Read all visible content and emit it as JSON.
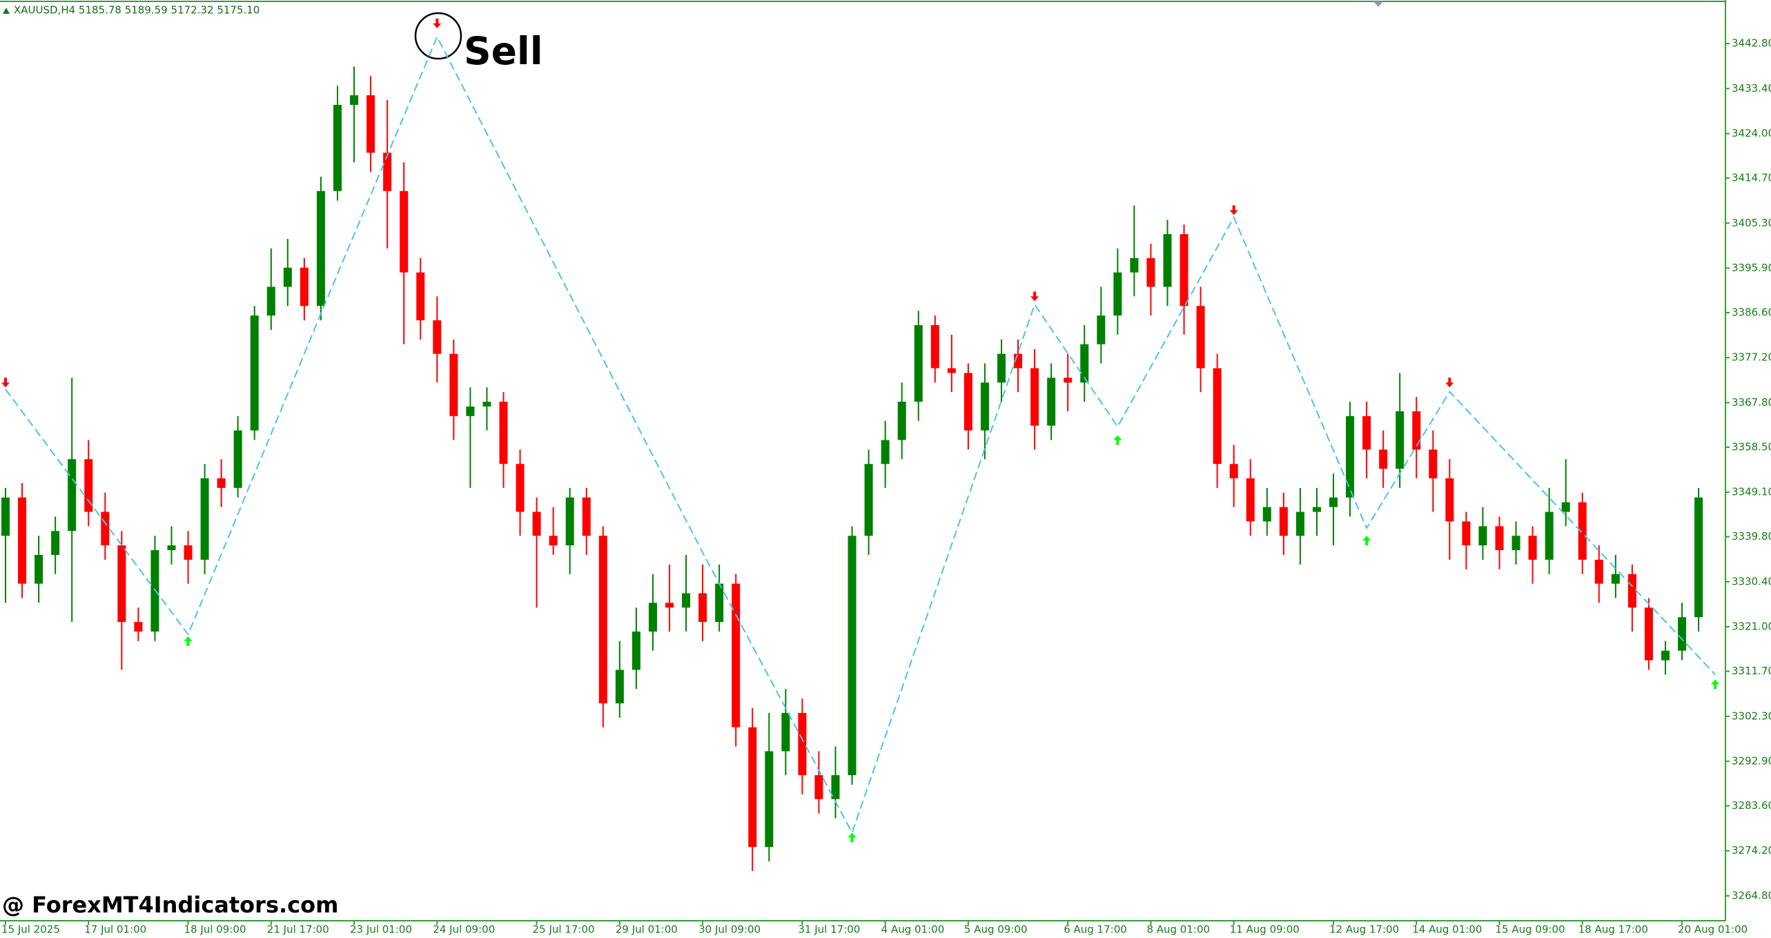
{
  "chart_data": {
    "type": "candlestick",
    "title": "XAUUSD,H4  5185.78 5189.59 5172.32 5175.10",
    "annotation": "Sell",
    "watermark": "@ ForexMT4Indicators.com",
    "up_color": "#008000",
    "down_color": "#ff0000",
    "categories": [
      "15 Jul 2025",
      null,
      null,
      null,
      null,
      "17 Jul 01:00",
      null,
      null,
      null,
      null,
      null,
      "18 Jul 09:00",
      null,
      null,
      null,
      null,
      "21 Jul 17:00",
      null,
      null,
      null,
      null,
      "23 Jul 01:00",
      null,
      null,
      null,
      null,
      "24 Jul 09:00",
      null,
      null,
      null,
      null,
      null,
      "25 Jul 17:00",
      null,
      null,
      null,
      null,
      "29 Jul 01:00",
      null,
      null,
      null,
      null,
      "30 Jul 09:00",
      null,
      null,
      null,
      null,
      null,
      "31 Jul 17:00",
      null,
      null,
      null,
      null,
      "4 Aug 01:00",
      null,
      null,
      null,
      null,
      "5 Aug 09:00",
      null,
      null,
      null,
      null,
      null,
      "6 Aug 17:00",
      null,
      null,
      null,
      null,
      "8 Aug 01:00",
      null,
      null,
      null,
      null,
      "11 Aug 09:00",
      null,
      null,
      null,
      null,
      null,
      "12 Aug 17:00",
      null,
      null,
      null,
      null,
      "14 Aug 01:00",
      null,
      null,
      null,
      null,
      "15 Aug 09:00",
      null,
      null,
      null,
      null,
      "18 Aug 17:00",
      null,
      null,
      null,
      null,
      null,
      "20 Aug 01:00",
      null
    ],
    "ohlc": [
      [
        3340,
        3350,
        3326,
        3348
      ],
      [
        3348,
        3351,
        3327,
        3330
      ],
      [
        3330,
        3340,
        3326,
        3336
      ],
      [
        3336,
        3344,
        3332,
        3341
      ],
      [
        3341,
        3373,
        3322,
        3356
      ],
      [
        3356,
        3360,
        3342,
        3345
      ],
      [
        3345,
        3349,
        3335,
        3338
      ],
      [
        3338,
        3341,
        3312,
        3322
      ],
      [
        3322,
        3325,
        3318,
        3320
      ],
      [
        3320,
        3340,
        3318,
        3337
      ],
      [
        3337,
        3342,
        3334,
        3338
      ],
      [
        3338,
        3341,
        3330,
        3335
      ],
      [
        3335,
        3355,
        3332,
        3352
      ],
      [
        3352,
        3356,
        3346,
        3350
      ],
      [
        3350,
        3365,
        3348,
        3362
      ],
      [
        3362,
        3388,
        3360,
        3386
      ],
      [
        3386,
        3400,
        3383,
        3392
      ],
      [
        3392,
        3402,
        3388,
        3396
      ],
      [
        3396,
        3398,
        3385,
        3388
      ],
      [
        3388,
        3415,
        3385,
        3412
      ],
      [
        3412,
        3434,
        3410,
        3430
      ],
      [
        3430,
        3438,
        3418,
        3432
      ],
      [
        3432,
        3436,
        3416,
        3420
      ],
      [
        3420,
        3431,
        3400,
        3412
      ],
      [
        3412,
        3418,
        3380,
        3395
      ],
      [
        3395,
        3398,
        3381,
        3385
      ],
      [
        3385,
        3390,
        3372,
        3378
      ],
      [
        3378,
        3381,
        3360,
        3365
      ],
      [
        3365,
        3371,
        3350,
        3367
      ],
      [
        3367,
        3371,
        3362,
        3368
      ],
      [
        3368,
        3370,
        3350,
        3355
      ],
      [
        3355,
        3358,
        3340,
        3345
      ],
      [
        3345,
        3348,
        3325,
        3340
      ],
      [
        3340,
        3346,
        3336,
        3338
      ],
      [
        3338,
        3350,
        3332,
        3348
      ],
      [
        3348,
        3350,
        3336,
        3340
      ],
      [
        3340,
        3342,
        3300,
        3305
      ],
      [
        3305,
        3318,
        3302,
        3312
      ],
      [
        3312,
        3325,
        3308,
        3320
      ],
      [
        3320,
        3332,
        3316,
        3326
      ],
      [
        3326,
        3334,
        3320,
        3325
      ],
      [
        3325,
        3336,
        3320,
        3328
      ],
      [
        3328,
        3334,
        3318,
        3322
      ],
      [
        3322,
        3334,
        3320,
        3330
      ],
      [
        3330,
        3332,
        3296,
        3300
      ],
      [
        3300,
        3304,
        3270,
        3275
      ],
      [
        3275,
        3303,
        3272,
        3295
      ],
      [
        3295,
        3308,
        3290,
        3303
      ],
      [
        3303,
        3306,
        3286,
        3290
      ],
      [
        3290,
        3295,
        3282,
        3285
      ],
      [
        3285,
        3296,
        3281,
        3290
      ],
      [
        3290,
        3342,
        3288,
        3340
      ],
      [
        3340,
        3358,
        3336,
        3355
      ],
      [
        3355,
        3364,
        3350,
        3360
      ],
      [
        3360,
        3372,
        3356,
        3368
      ],
      [
        3368,
        3387,
        3364,
        3384
      ],
      [
        3384,
        3386,
        3372,
        3375
      ],
      [
        3375,
        3382,
        3370,
        3374
      ],
      [
        3374,
        3376,
        3358,
        3362
      ],
      [
        3362,
        3376,
        3356,
        3372
      ],
      [
        3372,
        3381,
        3368,
        3378
      ],
      [
        3378,
        3381,
        3370,
        3375
      ],
      [
        3375,
        3379,
        3358,
        3363
      ],
      [
        3363,
        3376,
        3360,
        3373
      ],
      [
        3373,
        3378,
        3366,
        3372
      ],
      [
        3372,
        3384,
        3368,
        3380
      ],
      [
        3380,
        3392,
        3376,
        3386
      ],
      [
        3386,
        3400,
        3382,
        3395
      ],
      [
        3395,
        3409,
        3390,
        3398
      ],
      [
        3398,
        3401,
        3386,
        3392
      ],
      [
        3392,
        3406,
        3388,
        3403
      ],
      [
        3403,
        3405,
        3382,
        3388
      ],
      [
        3388,
        3392,
        3370,
        3375
      ],
      [
        3375,
        3378,
        3350,
        3355
      ],
      [
        3355,
        3359,
        3346,
        3352
      ],
      [
        3352,
        3356,
        3340,
        3343
      ],
      [
        3343,
        3350,
        3340,
        3346
      ],
      [
        3346,
        3349,
        3336,
        3340
      ],
      [
        3340,
        3350,
        3334,
        3345
      ],
      [
        3345,
        3350,
        3340,
        3346
      ],
      [
        3346,
        3353,
        3338,
        3348
      ],
      [
        3348,
        3368,
        3344,
        3365
      ],
      [
        3365,
        3368,
        3352,
        3358
      ],
      [
        3358,
        3362,
        3350,
        3354
      ],
      [
        3354,
        3374,
        3350,
        3366
      ],
      [
        3366,
        3369,
        3352,
        3358
      ],
      [
        3358,
        3362,
        3345,
        3352
      ],
      [
        3352,
        3356,
        3335,
        3343
      ],
      [
        3343,
        3345,
        3333,
        3338
      ],
      [
        3338,
        3346,
        3335,
        3342
      ],
      [
        3342,
        3344,
        3333,
        3337
      ],
      [
        3337,
        3343,
        3334,
        3340
      ],
      [
        3340,
        3342,
        3330,
        3335
      ],
      [
        3335,
        3350,
        3332,
        3345
      ],
      [
        3345,
        3356,
        3342,
        3347
      ],
      [
        3347,
        3349,
        3332,
        3335
      ],
      [
        3335,
        3338,
        3326,
        3330
      ],
      [
        3330,
        3336,
        3327,
        3332
      ],
      [
        3332,
        3334,
        3320,
        3325
      ],
      [
        3325,
        3327,
        3312,
        3314
      ],
      [
        3314,
        3318,
        3311,
        3316
      ],
      [
        3316,
        3326,
        3314,
        3323
      ],
      [
        3323,
        3350,
        3320,
        3348
      ]
    ],
    "zigzag": {
      "color": "#4cc3e6",
      "x": [
        0,
        11,
        19,
        26,
        42,
        51,
        62,
        67,
        74,
        82,
        87,
        103
      ],
      "y": [
        3370.6,
        3319.4,
        3386.4,
        3444.2,
        3336.5,
        3278,
        3388.3,
        3362.8,
        3406.5,
        3341.6,
        3370.1,
        3311
      ]
    },
    "sell_signals": {
      "color": "#ff0000",
      "x": [
        0,
        26,
        62,
        74,
        87
      ],
      "y": [
        3371,
        3446,
        3389,
        3407,
        3371
      ]
    },
    "buy_signals": {
      "color": "#00ff00",
      "x": [
        11,
        51,
        67,
        82,
        103
      ],
      "y": [
        3319,
        3278,
        3361,
        3340,
        3310
      ]
    },
    "ylim": [
      3259.6,
      3451.9
    ],
    "yticks": [
      {
        "value": 3442.8,
        "label": "3442.80"
      },
      {
        "value": 3433.4,
        "label": "3433.40"
      },
      {
        "value": 3424,
        "label": "3424.00"
      },
      {
        "value": 3414.7,
        "label": "3414.70"
      },
      {
        "value": 3405.3,
        "label": "3405.30"
      },
      {
        "value": 3395.9,
        "label": "3395.90"
      },
      {
        "value": 3386.6,
        "label": "3386.60"
      },
      {
        "value": 3377.2,
        "label": "3377.20"
      },
      {
        "value": 3367.8,
        "label": "3367.80"
      },
      {
        "value": 3358.5,
        "label": "3358.50"
      },
      {
        "value": 3349.1,
        "label": "3349.10"
      },
      {
        "value": 3339.8,
        "label": "3339.80"
      },
      {
        "value": 3330.4,
        "label": "3330.40"
      },
      {
        "value": 3321,
        "label": "3321.00"
      },
      {
        "value": 3311.7,
        "label": "3311.70"
      },
      {
        "value": 3302.3,
        "label": "3302.30"
      },
      {
        "value": 3292.9,
        "label": "3292.90"
      },
      {
        "value": 3283.6,
        "label": "3283.60"
      },
      {
        "value": 3274.2,
        "label": "3274.20"
      },
      {
        "value": 3264.8,
        "label": "3264.80"
      }
    ]
  }
}
